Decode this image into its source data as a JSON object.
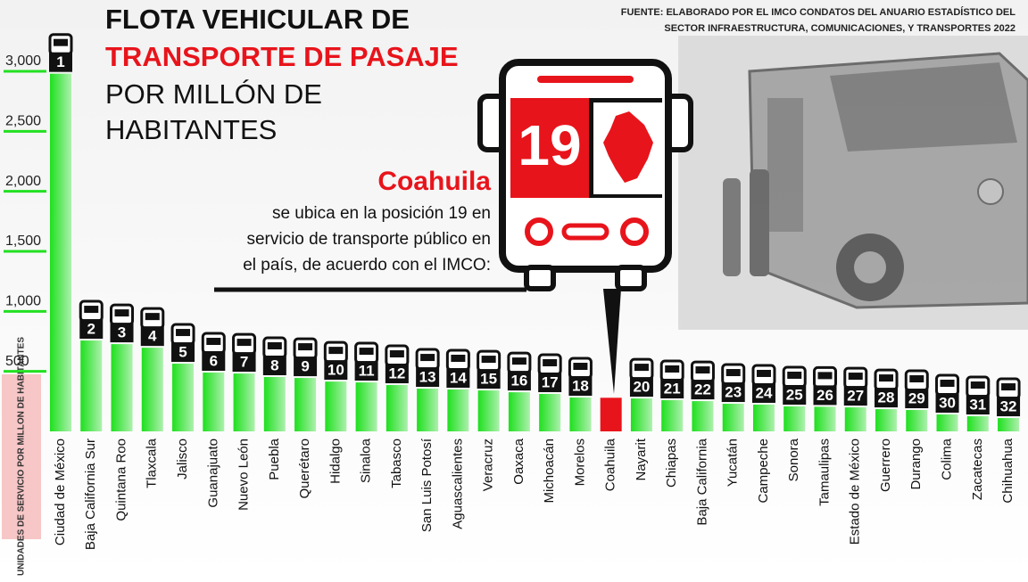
{
  "chart_data": {
    "type": "bar",
    "title": {
      "line1": "FLOTA VEHICULAR DE",
      "line2": "TRANSPORTE DE PASAJE",
      "line3": "POR MILLÓN DE",
      "line4": "HABITANTES"
    },
    "source": {
      "line1": "FUENTE: ELABORADO POR EL IMCO CONDATOS DEL ANUARIO ESTADÍSTICO DEL",
      "line2": "SECTOR INFRAESTRUCTURA, COMUNICACIONES, Y TRANSPORTES 2022"
    },
    "ylabel": "UNIDADES DE SERVICIO POR MILLON DE HABITANTES",
    "highlight": {
      "name": "Coahuila",
      "rank": 19,
      "color": "#e8141b",
      "text": [
        "se ubica en la posición 19 en",
        "servicio de transporte público en",
        "el país, de acuerdo con el IMCO:"
      ]
    },
    "categories": [
      "Ciudad de México",
      "Baja California Sur",
      "Quintana Roo",
      "Tlaxcala",
      "Jalisco",
      "Guanajuato",
      "Nuevo León",
      "Puebla",
      "Querétaro",
      "Hidalgo",
      "Sinaloa",
      "Tabasco",
      "San Luis Potosí",
      "Aguascalientes",
      "Veracruz",
      "Oaxaca",
      "Michoacán",
      "Morelos",
      "Coahuila",
      "Nayarit",
      "Chiapas",
      "Baja California",
      "Yucatán",
      "Campeche",
      "Sonora",
      "Tamaulipas",
      "Estado de México",
      "Guerrero",
      "Durango",
      "Colima",
      "Zacatecas",
      "Chihuahua"
    ],
    "values": [
      2980,
      757,
      727,
      697,
      564,
      490,
      482,
      453,
      445,
      415,
      408,
      386,
      356,
      349,
      341,
      326,
      312,
      282,
      280,
      274,
      260,
      252,
      230,
      223,
      208,
      205,
      200,
      185,
      178,
      141,
      126,
      111
    ],
    "ranks": [
      1,
      2,
      3,
      4,
      5,
      6,
      7,
      8,
      9,
      10,
      11,
      12,
      13,
      14,
      15,
      16,
      17,
      18,
      null,
      20,
      21,
      22,
      23,
      24,
      25,
      26,
      27,
      28,
      29,
      30,
      31,
      32
    ],
    "color": "#22e022",
    "ylim": [
      0,
      3000
    ],
    "yticks": [
      500,
      {
        "value": 1000,
        "label": "1,000"
      },
      {
        "value": 1500,
        "label": "1,500"
      },
      {
        "value": 2000,
        "label": "2,000"
      },
      {
        "value": 2500,
        "label": "2,500"
      },
      {
        "value": 3000,
        "label": "3,000"
      }
    ],
    "grid": true
  }
}
